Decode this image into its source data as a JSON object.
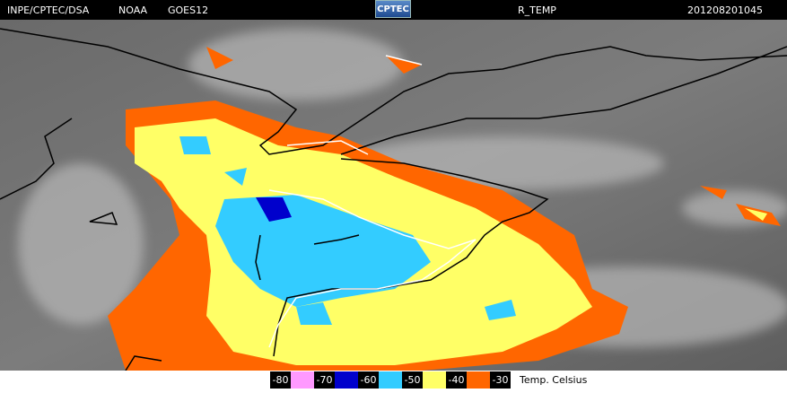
{
  "header": {
    "source": "INPE/CPTEC/DSA",
    "agency": "NOAA",
    "satellite": "GOES12",
    "logo": "CPTEC",
    "product": "R_TEMP",
    "timestamp": "201208201045"
  },
  "legend": {
    "ticks": [
      -80,
      -70,
      -60,
      -50,
      -40,
      -30
    ],
    "colors": [
      "#ff99ff",
      "#0000cc",
      "#33ccff",
      "#ffff66",
      "#ff6600"
    ],
    "unit": "Temp. Celsius"
  }
}
